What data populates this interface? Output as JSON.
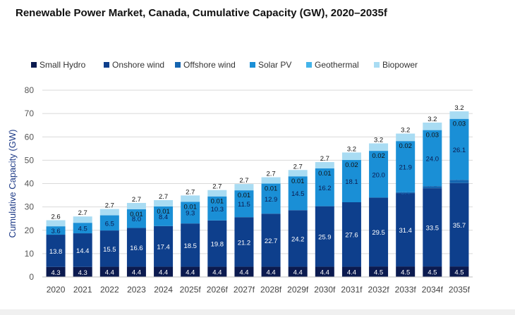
{
  "chart_data": {
    "type": "bar",
    "stacked": true,
    "title": "Renewable Power Market, Canada, Cumulative Capacity (GW), 2020–2035f",
    "xlabel": "",
    "ylabel": "Cumulative Capacity (GW)",
    "ylim": [
      0,
      80
    ],
    "yticks": [
      0,
      10,
      20,
      30,
      40,
      50,
      60,
      70,
      80
    ],
    "grid": true,
    "legend_position": "top",
    "categories": [
      "2020",
      "2021",
      "2022",
      "2023",
      "2024",
      "2025f",
      "2026f",
      "2027f",
      "2028f",
      "2029f",
      "2030f",
      "2031f",
      "2032f",
      "2033f",
      "2034f",
      "2035f"
    ],
    "series": [
      {
        "name": "Small Hydro",
        "color": "#0b1a4f",
        "values": [
          4.3,
          4.3,
          4.4,
          4.4,
          4.4,
          4.4,
          4.4,
          4.4,
          4.4,
          4.4,
          4.4,
          4.4,
          4.5,
          4.5,
          4.5,
          4.5
        ],
        "labels": [
          "4.3",
          "4.3",
          "4.4",
          "4.4",
          "4.4",
          "4.4",
          "4.4",
          "4.4",
          "4.4",
          "4.4",
          "4.4",
          "4.4",
          "4.5",
          "4.5",
          "4.5",
          "4.5"
        ]
      },
      {
        "name": "Onshore wind",
        "color": "#0e3f8c",
        "values": [
          13.8,
          14.4,
          15.5,
          16.6,
          17.4,
          18.5,
          19.8,
          21.2,
          22.7,
          24.2,
          25.9,
          27.6,
          29.5,
          31.4,
          33.5,
          35.7
        ],
        "labels": [
          "13.8",
          "14.4",
          "15.5",
          "16.6",
          "17.4",
          "18.5",
          "19.8",
          "21.2",
          "22.7",
          "24.2",
          "25.9",
          "27.6",
          "29.5",
          "31.4",
          "33.5",
          "35.7"
        ]
      },
      {
        "name": "Offshore wind",
        "color": "#1565b0",
        "values": [
          0,
          0,
          0,
          0,
          0,
          0,
          0,
          0,
          0,
          0,
          0,
          0,
          0,
          0.4,
          0.9,
          1.4
        ],
        "labels": [
          "",
          "",
          "",
          "",
          "",
          "",
          "",
          "",
          "",
          "",
          "",
          "",
          "",
          "0.4",
          "0.9",
          "1.4"
        ]
      },
      {
        "name": "Solar PV",
        "color": "#1a8fd6",
        "values": [
          3.6,
          4.5,
          6.5,
          8.0,
          8.4,
          9.3,
          10.3,
          11.5,
          12.9,
          14.5,
          16.2,
          18.1,
          20.0,
          21.9,
          24.0,
          26.1
        ],
        "labels": [
          "3.6",
          "4.5",
          "6.5",
          "8.0",
          "8.4",
          "9.3",
          "10.3",
          "11.5",
          "12.9",
          "14.5",
          "16.2",
          "18.1",
          "20.0",
          "21.9",
          "24.0",
          "26.1"
        ]
      },
      {
        "name": "Geothermal",
        "color": "#43b4ea",
        "values": [
          0,
          0,
          0,
          0.01,
          0.01,
          0.01,
          0.01,
          0.01,
          0.01,
          0.01,
          0.01,
          0.02,
          0.02,
          0.02,
          0.03,
          0.03
        ],
        "labels": [
          "",
          "",
          "",
          "0.01",
          "0.01",
          "0.01",
          "0.01",
          "0.01",
          "0.01",
          "0.01",
          "0.01",
          "0.02",
          "0.02",
          "0.02",
          "0.03",
          "0.03"
        ]
      },
      {
        "name": "Biopower",
        "color": "#a9dcf3",
        "values": [
          2.6,
          2.7,
          2.7,
          2.7,
          2.7,
          2.7,
          2.7,
          2.7,
          2.7,
          2.7,
          2.7,
          3.2,
          3.2,
          3.2,
          3.2,
          3.2
        ],
        "labels": [
          "2.6",
          "2.7",
          "2.7",
          "2.7",
          "2.7",
          "2.7",
          "2.7",
          "2.7",
          "2.7",
          "2.7",
          "2.7",
          "3.2",
          "3.2",
          "3.2",
          "3.2",
          "3.2"
        ]
      }
    ]
  }
}
